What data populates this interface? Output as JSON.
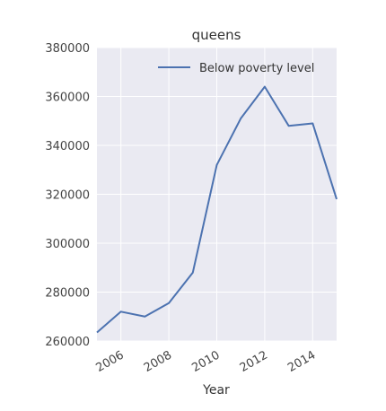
{
  "chart_data": {
    "type": "line",
    "title": "queens",
    "xlabel": "Year",
    "ylabel": "",
    "x": [
      2005,
      2006,
      2007,
      2008,
      2009,
      2010,
      2011,
      2012,
      2013,
      2014,
      2015
    ],
    "x_ticks": [
      "2006",
      "2008",
      "2010",
      "2012",
      "2014"
    ],
    "y_ticks": [
      "260000",
      "280000",
      "300000",
      "320000",
      "340000",
      "360000",
      "380000"
    ],
    "xlim": [
      2005,
      2015
    ],
    "ylim": [
      260000,
      380000
    ],
    "grid": true,
    "legend_position": "top-right",
    "series": [
      {
        "name": "Below poverty level",
        "color": "#4c72b0",
        "values": [
          263500,
          272000,
          270000,
          275500,
          288000,
          332000,
          351000,
          364000,
          348000,
          349000,
          318000
        ]
      }
    ]
  },
  "style": {
    "plot_background": "#eaeaf2",
    "grid_color": "#ffffff",
    "line_color": "#4c72b0"
  }
}
